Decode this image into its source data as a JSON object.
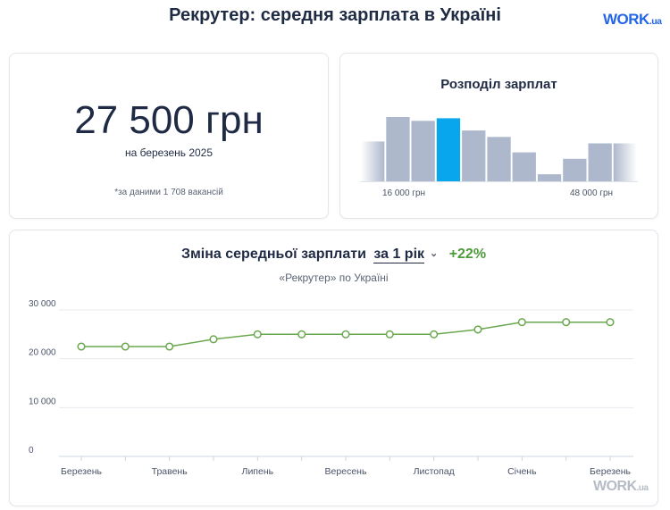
{
  "page": {
    "title": "Рекрутер: середня зарплата в Україні"
  },
  "logo": {
    "main": "WORK",
    "suffix": ".ua"
  },
  "salary_card": {
    "value": "27 500 грн",
    "date": "на березень 2025",
    "source": "*за даними 1 708 вакансій"
  },
  "distribution_card": {
    "title": "Розподіл зарплат",
    "min_label": "16 000 грн",
    "max_label": "48 000 грн"
  },
  "trend_card": {
    "title": "Зміна середньої зарплати",
    "period": "за 1 рік",
    "change": "+22%",
    "subtitle": "«Рекрутер» по Україні"
  },
  "colors": {
    "bar": "#aeb8cc",
    "bar_highlight": "#08a6ec",
    "line": "#6aa84f",
    "title": "#1f2a44",
    "change": "#4f9a3c"
  },
  "chart_data": [
    {
      "type": "bar",
      "title": "Розподіл зарплат",
      "categories": [
        "",
        "",
        "",
        "",
        "",
        "",
        "",
        "",
        "",
        "",
        ""
      ],
      "values": [
        0.62,
        1.0,
        0.94,
        0.98,
        0.79,
        0.69,
        0.45,
        0.11,
        0.35,
        0.59,
        0.59
      ],
      "highlight_index": 3,
      "faded_ends": true,
      "x_labels": [
        "16 000 грн",
        "48 000 грн"
      ]
    },
    {
      "type": "line",
      "title": "Зміна середньої зарплати",
      "categories": [
        "Березень",
        "Квітень",
        "Травень",
        "Червень",
        "Липень",
        "Серпень",
        "Вересень",
        "Жовтень",
        "Листопад",
        "Грудень",
        "Січень",
        "Лютий",
        "Березень"
      ],
      "tick_labels": [
        "Березень",
        "",
        "Травень",
        "",
        "Липень",
        "",
        "Вересень",
        "",
        "Листопад",
        "",
        "Січень",
        "",
        "Березень"
      ],
      "series": [
        {
          "values": [
            22500,
            22500,
            22500,
            24000,
            25000,
            25000,
            25000,
            25000,
            25000,
            26000,
            27500,
            27500,
            27500
          ]
        }
      ],
      "ylim": [
        0,
        30000
      ],
      "yticks": [
        0,
        10000,
        20000,
        30000
      ],
      "ytick_labels": [
        "0",
        "10 000",
        "20 000",
        "30 000"
      ],
      "grid": true,
      "xlabel": "",
      "ylabel": ""
    }
  ]
}
